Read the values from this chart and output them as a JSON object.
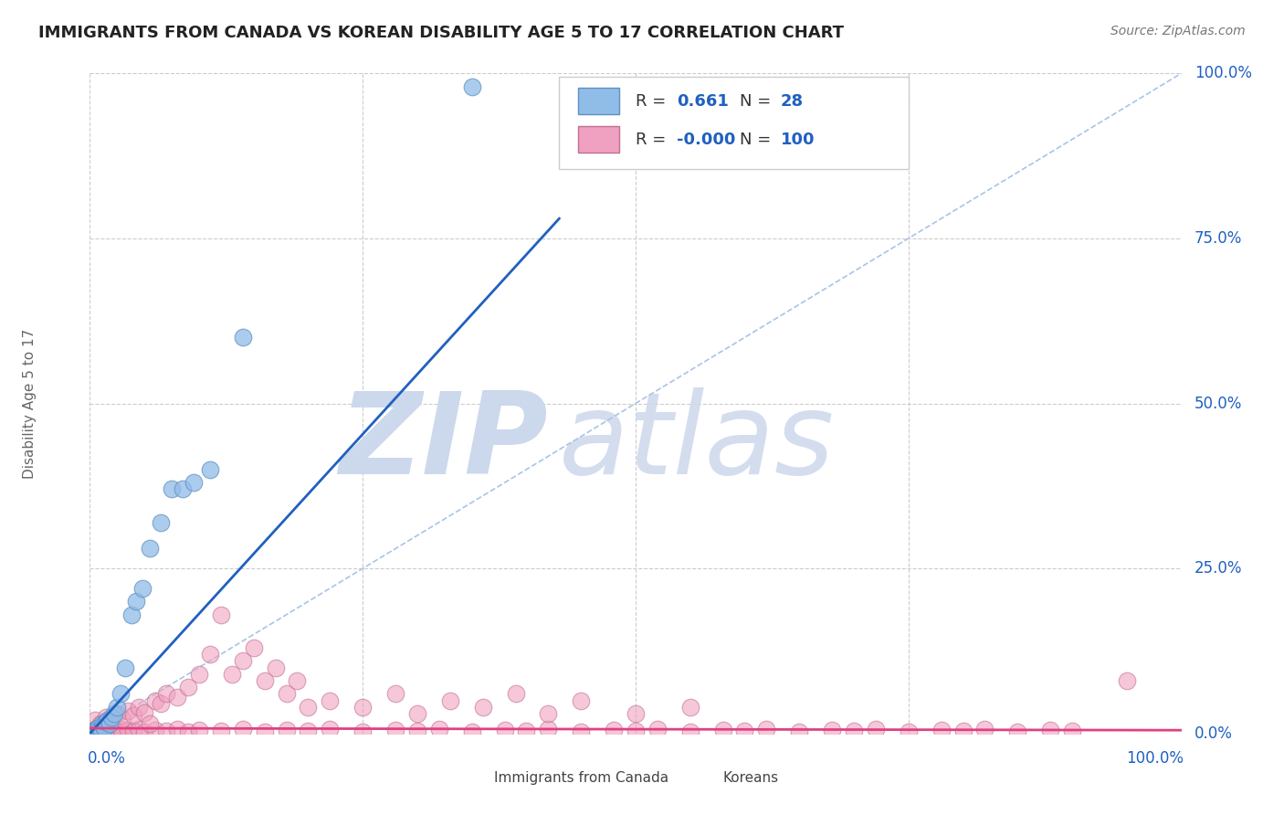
{
  "title": "IMMIGRANTS FROM CANADA VS KOREAN DISABILITY AGE 5 TO 17 CORRELATION CHART",
  "source": "Source: ZipAtlas.com",
  "ylabel": "Disability Age 5 to 17",
  "ytick_values": [
    0,
    0.25,
    0.5,
    0.75,
    1.0
  ],
  "ytick_labels": [
    "0.0%",
    "25.0%",
    "50.0%",
    "75.0%",
    "100.0%"
  ],
  "xtick_labels_bottom": [
    "0.0%",
    "100.0%"
  ],
  "legend_blue_R": "0.661",
  "legend_blue_N": "28",
  "legend_pink_R": "-0.000",
  "legend_pink_N": "100",
  "legend_label_blue": "Immigrants from Canada",
  "legend_label_pink": "Koreans",
  "blue_scatter_x": [
    0.003,
    0.005,
    0.007,
    0.008,
    0.009,
    0.01,
    0.011,
    0.012,
    0.013,
    0.015,
    0.016,
    0.018,
    0.02,
    0.022,
    0.025,
    0.028,
    0.032,
    0.038,
    0.042,
    0.048,
    0.055,
    0.065,
    0.075,
    0.085,
    0.095,
    0.11,
    0.14,
    0.35
  ],
  "blue_scatter_y": [
    0.003,
    0.005,
    0.008,
    0.01,
    0.005,
    0.008,
    0.015,
    0.012,
    0.008,
    0.018,
    0.02,
    0.015,
    0.025,
    0.03,
    0.04,
    0.06,
    0.1,
    0.18,
    0.2,
    0.22,
    0.28,
    0.32,
    0.37,
    0.37,
    0.38,
    0.4,
    0.6,
    0.98
  ],
  "pink_scatter_x": [
    0.002,
    0.003,
    0.004,
    0.005,
    0.006,
    0.007,
    0.008,
    0.009,
    0.01,
    0.011,
    0.012,
    0.014,
    0.016,
    0.018,
    0.02,
    0.022,
    0.025,
    0.028,
    0.03,
    0.035,
    0.04,
    0.045,
    0.05,
    0.06,
    0.07,
    0.08,
    0.09,
    0.1,
    0.12,
    0.14,
    0.16,
    0.18,
    0.2,
    0.22,
    0.25,
    0.28,
    0.3,
    0.32,
    0.35,
    0.38,
    0.4,
    0.42,
    0.45,
    0.48,
    0.5,
    0.52,
    0.55,
    0.58,
    0.6,
    0.62,
    0.65,
    0.68,
    0.7,
    0.72,
    0.75,
    0.78,
    0.8,
    0.82,
    0.85,
    0.88,
    0.9,
    0.95,
    0.005,
    0.01,
    0.015,
    0.02,
    0.025,
    0.03,
    0.035,
    0.04,
    0.045,
    0.05,
    0.055,
    0.06,
    0.065,
    0.07,
    0.08,
    0.09,
    0.1,
    0.11,
    0.12,
    0.13,
    0.14,
    0.15,
    0.16,
    0.17,
    0.18,
    0.19,
    0.2,
    0.22,
    0.25,
    0.28,
    0.3,
    0.33,
    0.36,
    0.39,
    0.42,
    0.45,
    0.5,
    0.55
  ],
  "pink_scatter_y": [
    0.002,
    0.005,
    0.003,
    0.007,
    0.004,
    0.006,
    0.003,
    0.005,
    0.004,
    0.006,
    0.003,
    0.005,
    0.004,
    0.006,
    0.003,
    0.005,
    0.004,
    0.006,
    0.003,
    0.005,
    0.004,
    0.006,
    0.003,
    0.005,
    0.004,
    0.006,
    0.003,
    0.005,
    0.004,
    0.006,
    0.003,
    0.005,
    0.004,
    0.006,
    0.003,
    0.005,
    0.004,
    0.006,
    0.003,
    0.005,
    0.004,
    0.006,
    0.003,
    0.005,
    0.004,
    0.006,
    0.003,
    0.005,
    0.004,
    0.006,
    0.003,
    0.005,
    0.004,
    0.006,
    0.003,
    0.005,
    0.004,
    0.006,
    0.003,
    0.005,
    0.004,
    0.08,
    0.02,
    0.015,
    0.025,
    0.018,
    0.03,
    0.022,
    0.035,
    0.028,
    0.04,
    0.032,
    0.015,
    0.05,
    0.045,
    0.06,
    0.055,
    0.07,
    0.09,
    0.12,
    0.18,
    0.09,
    0.11,
    0.13,
    0.08,
    0.1,
    0.06,
    0.08,
    0.04,
    0.05,
    0.04,
    0.06,
    0.03,
    0.05,
    0.04,
    0.06,
    0.03,
    0.05,
    0.03,
    0.04
  ],
  "blue_line_color": "#2060c0",
  "pink_line_color": "#e04080",
  "scatter_blue_face": "#90bce8",
  "scatter_blue_edge": "#6090c0",
  "scatter_pink_face": "#f0a0c0",
  "scatter_pink_edge": "#c07090",
  "diagonal_color": "#a8c4e8",
  "grid_color": "#cccccc",
  "grid_linestyle": "--",
  "watermark_zip": "ZIP",
  "watermark_atlas": "atlas",
  "watermark_color": "#ccd8ec",
  "background_color": "#ffffff",
  "title_fontsize": 13,
  "source_fontsize": 10,
  "axis_label_fontsize": 11,
  "tick_fontsize": 12,
  "legend_fontsize": 11,
  "legend_text_color_black": "#333333",
  "legend_text_color_blue": "#2060c0"
}
